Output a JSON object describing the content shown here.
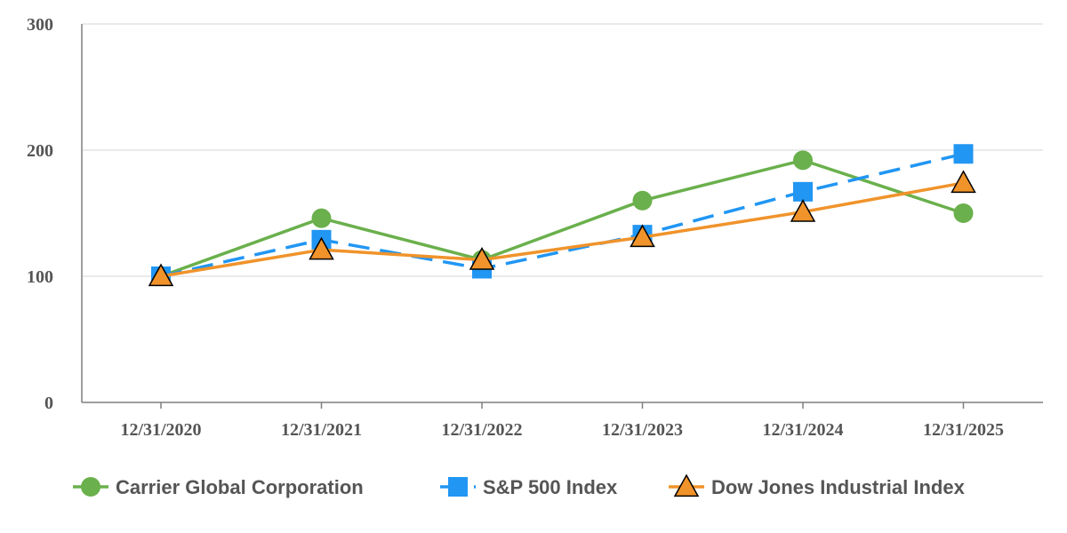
{
  "chart_data": {
    "type": "line",
    "categories": [
      "12/31/2020",
      "12/31/2021",
      "12/31/2022",
      "12/31/2023",
      "12/31/2024",
      "12/31/2025"
    ],
    "ylim": [
      0,
      300
    ],
    "yticks": [
      "0",
      "100",
      "200",
      "300"
    ],
    "grid": "horizontal",
    "legend_position": "bottom",
    "series": [
      {
        "name": "Carrier Global Corporation",
        "values": [
          100,
          146,
          113,
          160,
          192,
          150
        ],
        "color": "#6ab04c",
        "marker": "circle",
        "dash": "solid"
      },
      {
        "name": "S&P 500 Index",
        "values": [
          100,
          129,
          106,
          133,
          167,
          197
        ],
        "color": "#2196f3",
        "marker": "square",
        "dash": "dashed"
      },
      {
        "name": "Dow Jones Industrial Index",
        "values": [
          100,
          121,
          113,
          131,
          151,
          174
        ],
        "color": "#f0932b",
        "marker": "triangle",
        "dash": "solid"
      }
    ]
  }
}
